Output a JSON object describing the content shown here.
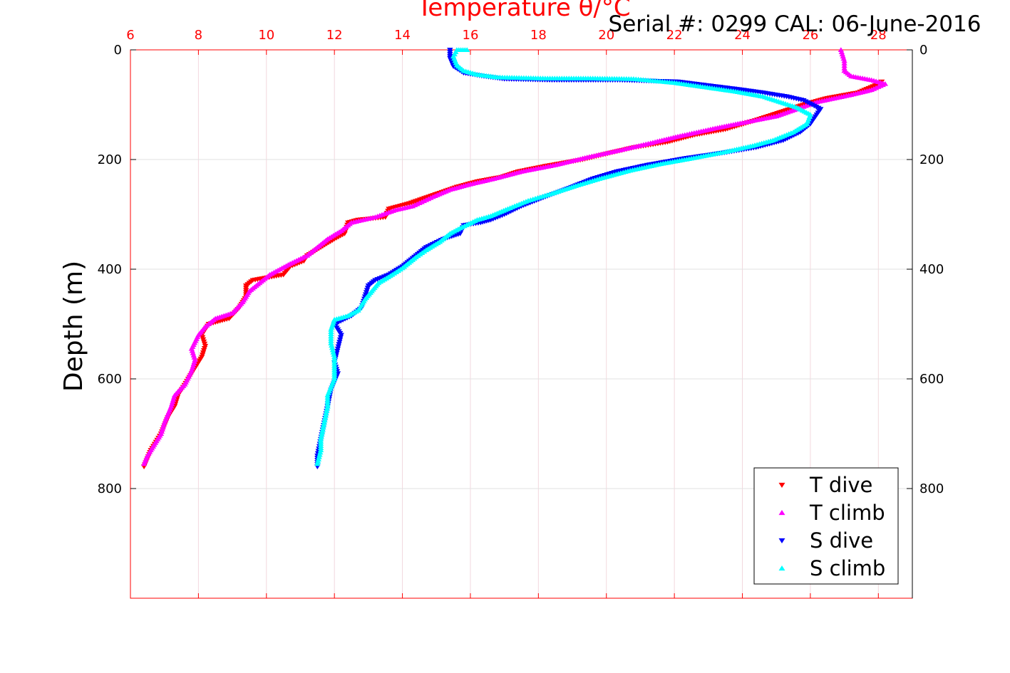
{
  "chart_data": {
    "type": "scatter",
    "title": "Temperature θ/°C",
    "annotation": "Serial #: 0299 CAL: 06-June-2016",
    "xlabel": "Temperature θ/°C",
    "ylabel": "Depth (m)",
    "xlim": [
      6,
      29
    ],
    "ylim": [
      1000,
      0
    ],
    "x_axis_position": "top",
    "y_reversed": true,
    "grid": true,
    "legend_position": "bottom-right",
    "x_ticks": [
      6,
      8,
      10,
      12,
      14,
      16,
      18,
      20,
      22,
      24,
      26,
      28
    ],
    "y_ticks": [
      0,
      200,
      400,
      600,
      800
    ],
    "series": [
      {
        "name": "T dive",
        "marker": "triangle-down",
        "color": "#ff0000",
        "points": [
          [
            6.4,
            760
          ],
          [
            6.6,
            730
          ],
          [
            6.9,
            700
          ],
          [
            7.1,
            670
          ],
          [
            7.3,
            650
          ],
          [
            7.4,
            630
          ],
          [
            7.7,
            600
          ],
          [
            7.9,
            580
          ],
          [
            8.1,
            560
          ],
          [
            8.2,
            540
          ],
          [
            8.1,
            520
          ],
          [
            8.3,
            500
          ],
          [
            8.9,
            490
          ],
          [
            9.2,
            470
          ],
          [
            9.4,
            450
          ],
          [
            9.4,
            430
          ],
          [
            9.6,
            420
          ],
          [
            10.5,
            410
          ],
          [
            10.7,
            395
          ],
          [
            11.1,
            385
          ],
          [
            11.2,
            375
          ],
          [
            11.6,
            360
          ],
          [
            12,
            345
          ],
          [
            12.3,
            335
          ],
          [
            12.4,
            315
          ],
          [
            12.7,
            310
          ],
          [
            13.5,
            305
          ],
          [
            13.6,
            290
          ],
          [
            14.2,
            280
          ],
          [
            14.9,
            265
          ],
          [
            15.6,
            250
          ],
          [
            16.2,
            240
          ],
          [
            16.9,
            232
          ],
          [
            17.4,
            222
          ],
          [
            18.2,
            212
          ],
          [
            19.3,
            200
          ],
          [
            20.1,
            188
          ],
          [
            20.8,
            178
          ],
          [
            21.8,
            168
          ],
          [
            22.6,
            155
          ],
          [
            23.5,
            145
          ],
          [
            24.3,
            130
          ],
          [
            24.9,
            118
          ],
          [
            25.4,
            108
          ],
          [
            25.9,
            98
          ],
          [
            26.5,
            88
          ],
          [
            27.4,
            78
          ],
          [
            27.9,
            65
          ],
          [
            28.1,
            58
          ]
        ]
      },
      {
        "name": "T climb",
        "marker": "triangle-up",
        "color": "#ff00ff",
        "points": [
          [
            6.4,
            755
          ],
          [
            6.5,
            740
          ],
          [
            6.7,
            720
          ],
          [
            6.9,
            700
          ],
          [
            7,
            680
          ],
          [
            7.2,
            650
          ],
          [
            7.3,
            630
          ],
          [
            7.6,
            610
          ],
          [
            7.8,
            585
          ],
          [
            7.9,
            565
          ],
          [
            7.8,
            545
          ],
          [
            8,
            520
          ],
          [
            8.2,
            505
          ],
          [
            8.5,
            490
          ],
          [
            9,
            480
          ],
          [
            9.3,
            460
          ],
          [
            9.5,
            440
          ],
          [
            9.9,
            420
          ],
          [
            10.1,
            410
          ],
          [
            10.4,
            400
          ],
          [
            10.7,
            390
          ],
          [
            11.2,
            375
          ],
          [
            11.5,
            360
          ],
          [
            11.8,
            345
          ],
          [
            12.2,
            330
          ],
          [
            12.5,
            315
          ],
          [
            13.2,
            305
          ],
          [
            13.8,
            292
          ],
          [
            14.3,
            285
          ],
          [
            14.9,
            268
          ],
          [
            15.4,
            255
          ],
          [
            16,
            245
          ],
          [
            16.7,
            235
          ],
          [
            17.5,
            222
          ],
          [
            18.5,
            210
          ],
          [
            19.5,
            195
          ],
          [
            20.4,
            183
          ],
          [
            21.3,
            170
          ],
          [
            22.1,
            158
          ],
          [
            23.2,
            143
          ],
          [
            24,
            133
          ],
          [
            25,
            121
          ],
          [
            25.6,
            108
          ],
          [
            26.2,
            95
          ],
          [
            27.2,
            82
          ],
          [
            27.8,
            73
          ],
          [
            28.2,
            62
          ],
          [
            27.8,
            55
          ],
          [
            27.2,
            48
          ],
          [
            27,
            38
          ],
          [
            27,
            20
          ],
          [
            26.9,
            0
          ]
        ]
      },
      {
        "name": "S dive",
        "marker": "triangle-down",
        "color": "#0000ff",
        "points": [
          [
            11.5,
            760
          ],
          [
            11.5,
            740
          ],
          [
            11.6,
            710
          ],
          [
            11.7,
            680
          ],
          [
            11.8,
            650
          ],
          [
            11.9,
            620
          ],
          [
            12.1,
            590
          ],
          [
            12,
            570
          ],
          [
            12.1,
            545
          ],
          [
            12.2,
            520
          ],
          [
            12,
            500
          ],
          [
            12.5,
            485
          ],
          [
            12.8,
            470
          ],
          [
            12.9,
            450
          ],
          [
            13,
            430
          ],
          [
            13.2,
            420
          ],
          [
            13.6,
            410
          ],
          [
            14,
            395
          ],
          [
            14.4,
            375
          ],
          [
            14.7,
            360
          ],
          [
            15.2,
            345
          ],
          [
            15.7,
            335
          ],
          [
            15.8,
            320
          ],
          [
            16.3,
            315
          ],
          [
            16.6,
            310
          ],
          [
            17,
            300
          ],
          [
            17.5,
            285
          ],
          [
            18.2,
            268
          ],
          [
            18.9,
            252
          ],
          [
            19.6,
            235
          ],
          [
            20.3,
            222
          ],
          [
            21.2,
            210
          ],
          [
            22.3,
            198
          ],
          [
            23.4,
            188
          ],
          [
            24.4,
            178
          ],
          [
            25.2,
            165
          ],
          [
            25.7,
            150
          ],
          [
            26,
            135
          ],
          [
            26.3,
            108
          ],
          [
            25.8,
            92
          ],
          [
            25.3,
            85
          ],
          [
            24.6,
            78
          ],
          [
            23.9,
            72
          ],
          [
            23,
            65
          ],
          [
            22.1,
            58
          ],
          [
            20.4,
            55
          ],
          [
            18.4,
            55
          ],
          [
            17,
            53
          ],
          [
            16.4,
            48
          ],
          [
            15.8,
            42
          ],
          [
            15.5,
            30
          ],
          [
            15.4,
            15
          ],
          [
            15.4,
            0
          ]
        ]
      },
      {
        "name": "S climb",
        "marker": "triangle-up",
        "color": "#00ffff",
        "points": [
          [
            11.5,
            755
          ],
          [
            11.6,
            730
          ],
          [
            11.6,
            710
          ],
          [
            11.7,
            680
          ],
          [
            11.8,
            650
          ],
          [
            11.8,
            630
          ],
          [
            12,
            600
          ],
          [
            12,
            580
          ],
          [
            12,
            560
          ],
          [
            11.9,
            535
          ],
          [
            11.9,
            510
          ],
          [
            12,
            492
          ],
          [
            12.4,
            485
          ],
          [
            12.7,
            475
          ],
          [
            12.9,
            455
          ],
          [
            13.1,
            440
          ],
          [
            13.3,
            425
          ],
          [
            13.7,
            410
          ],
          [
            14,
            398
          ],
          [
            14.4,
            378
          ],
          [
            14.7,
            365
          ],
          [
            15.1,
            350
          ],
          [
            15.4,
            335
          ],
          [
            15.7,
            325
          ],
          [
            16.2,
            310
          ],
          [
            16.6,
            303
          ],
          [
            17.1,
            290
          ],
          [
            17.7,
            275
          ],
          [
            18.4,
            262
          ],
          [
            19.1,
            248
          ],
          [
            19.8,
            235
          ],
          [
            20.7,
            220
          ],
          [
            21.6,
            208
          ],
          [
            22.5,
            198
          ],
          [
            23.5,
            186
          ],
          [
            24.3,
            175
          ],
          [
            24.9,
            165
          ],
          [
            25.5,
            150
          ],
          [
            25.9,
            135
          ],
          [
            26,
            118
          ],
          [
            25.6,
            105
          ],
          [
            25.2,
            97
          ],
          [
            24.6,
            85
          ],
          [
            23.8,
            76
          ],
          [
            22.9,
            68
          ],
          [
            22,
            60
          ],
          [
            20.8,
            53
          ],
          [
            19.6,
            52
          ],
          [
            18.2,
            52
          ],
          [
            16.8,
            50
          ],
          [
            16.2,
            45
          ],
          [
            15.8,
            38
          ],
          [
            15.6,
            28
          ],
          [
            15.5,
            12
          ],
          [
            15.6,
            0
          ],
          [
            15.9,
            0
          ]
        ]
      }
    ]
  }
}
